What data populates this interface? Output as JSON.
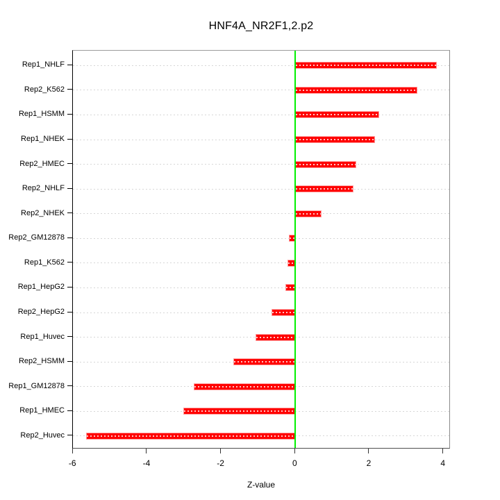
{
  "chart_data": {
    "type": "bar",
    "orientation": "horizontal",
    "title": "HNF4A_NR2F1,2.p2",
    "xlabel": "Z-value",
    "ylabel": "",
    "categories": [
      "Rep1_NHLF",
      "Rep2_K562",
      "Rep1_HSMM",
      "Rep1_NHEK",
      "Rep2_HMEC",
      "Rep2_NHLF",
      "Rep2_NHEK",
      "Rep2_GM12878",
      "Rep1_K562",
      "Rep1_HepG2",
      "Rep2_HepG2",
      "Rep1_Huvec",
      "Rep2_HSMM",
      "Rep1_GM12878",
      "Rep1_HMEC",
      "Rep2_Huvec"
    ],
    "values": [
      3.82,
      3.3,
      2.26,
      2.15,
      1.65,
      1.56,
      0.71,
      -0.18,
      -0.21,
      -0.26,
      -0.64,
      -1.08,
      -1.67,
      -2.75,
      -3.02,
      -5.65
    ],
    "xticks": [
      -6,
      -4,
      -2,
      0,
      2,
      4
    ],
    "xlim": [
      -6.0,
      4.2
    ],
    "grid": "dashed-horizontal-per-row",
    "legend": "none",
    "colors": {
      "bar_fill": "#ff0000",
      "bar_border": "#ff9c9c",
      "zero_line": "#00f000",
      "grid_line": "#d6d6d6",
      "text": "#000000",
      "background": "#ffffff"
    }
  }
}
